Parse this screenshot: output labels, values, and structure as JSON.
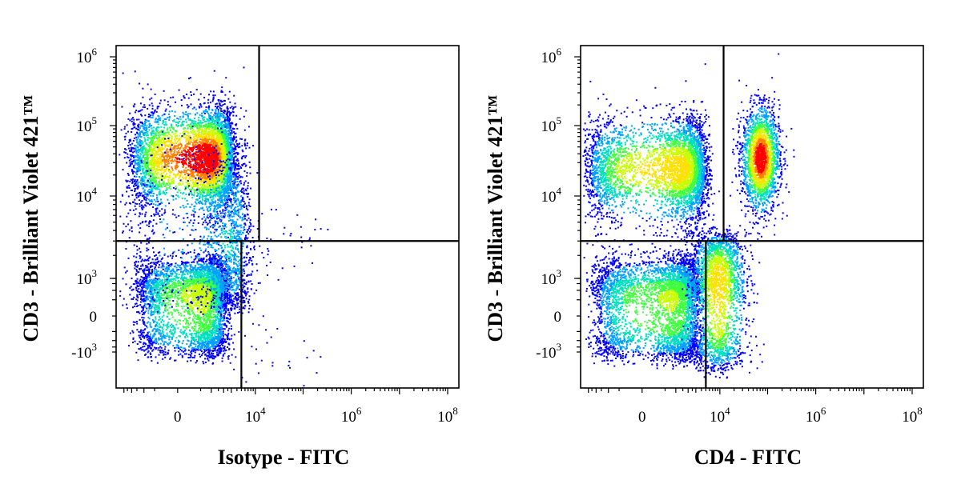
{
  "chart_data": [
    {
      "type": "scatter",
      "subtype": "flow-cytometry-density-dot-plot",
      "xlabel": "Isotype - FITC",
      "ylabel": "CD3 - Brilliant Violet 421™",
      "x_scale": "biexponential",
      "y_scale": "biexponential",
      "x_tick_labels": [
        {
          "value": 0,
          "base": "0",
          "exp": ""
        },
        {
          "value": 10000,
          "base": "10",
          "exp": "4"
        },
        {
          "value": 1000000,
          "base": "10",
          "exp": "6"
        },
        {
          "value": 100000000,
          "base": "10",
          "exp": "8"
        }
      ],
      "y_tick_labels": [
        {
          "value": -1000,
          "base": "-10",
          "exp": "3"
        },
        {
          "value": 0,
          "base": "0",
          "exp": ""
        },
        {
          "value": 1000,
          "base": "10",
          "exp": "3"
        },
        {
          "value": 10000,
          "base": "10",
          "exp": "4"
        },
        {
          "value": 100000,
          "base": "10",
          "exp": "5"
        },
        {
          "value": 1000000,
          "base": "10",
          "exp": "6"
        }
      ],
      "quadrant_gates": {
        "y_threshold": 3000,
        "x_threshold_upper": 12000,
        "x_threshold_lower": 5000
      },
      "populations": [
        {
          "x_center": 700,
          "y_center": 35000,
          "x_spread": 0.5,
          "y_spread": 0.22,
          "count": 5200,
          "peak": 1.0
        },
        {
          "x_center": 500,
          "y_center": 400,
          "x_spread": 0.5,
          "y_spread": 0.55,
          "count": 4200,
          "peak": 0.55
        },
        {
          "x_center": 2500,
          "y_center": 3000,
          "x_spread": 0.28,
          "y_spread": 0.45,
          "count": 1500,
          "peak": 0.25
        },
        {
          "x_center": 15000,
          "y_center": 1500,
          "x_spread": 0.35,
          "y_spread": 0.5,
          "count": 90,
          "peak": 0.05
        }
      ],
      "colors": [
        "#0000ff",
        "#00a0ff",
        "#00e0c0",
        "#40ff40",
        "#c8ff00",
        "#ffe000",
        "#ff8000",
        "#ff0000"
      ]
    },
    {
      "type": "scatter",
      "subtype": "flow-cytometry-density-dot-plot",
      "xlabel": "CD4 - FITC",
      "ylabel": "CD3 - Brilliant Violet 421™",
      "x_scale": "biexponential",
      "y_scale": "biexponential",
      "x_tick_labels": [
        {
          "value": 0,
          "base": "0",
          "exp": ""
        },
        {
          "value": 10000,
          "base": "10",
          "exp": "4"
        },
        {
          "value": 1000000,
          "base": "10",
          "exp": "6"
        },
        {
          "value": 100000000,
          "base": "10",
          "exp": "8"
        }
      ],
      "y_tick_labels": [
        {
          "value": -1000,
          "base": "-10",
          "exp": "3"
        },
        {
          "value": 0,
          "base": "0",
          "exp": ""
        },
        {
          "value": 1000,
          "base": "10",
          "exp": "3"
        },
        {
          "value": 10000,
          "base": "10",
          "exp": "4"
        },
        {
          "value": 100000,
          "base": "10",
          "exp": "5"
        },
        {
          "value": 1000000,
          "base": "10",
          "exp": "6"
        }
      ],
      "quadrant_gates": {
        "y_threshold": 3000,
        "x_threshold_upper": 12000,
        "x_threshold_lower": 5000
      },
      "populations": [
        {
          "x_center": 1000,
          "y_center": 25000,
          "x_spread": 0.55,
          "y_spread": 0.22,
          "count": 4200,
          "peak": 0.7
        },
        {
          "x_center": 70000,
          "y_center": 35000,
          "x_spread": 0.12,
          "y_spread": 0.22,
          "count": 2300,
          "peak": 1.0
        },
        {
          "x_center": 700,
          "y_center": 300,
          "x_spread": 0.55,
          "y_spread": 0.6,
          "count": 4300,
          "peak": 0.5
        },
        {
          "x_center": 9000,
          "y_center": 800,
          "x_spread": 0.18,
          "y_spread": 0.55,
          "count": 2300,
          "peak": 0.7
        }
      ],
      "colors": [
        "#0000ff",
        "#00a0ff",
        "#00e0c0",
        "#40ff40",
        "#c8ff00",
        "#ffe000",
        "#ff8000",
        "#ff0000"
      ]
    }
  ]
}
